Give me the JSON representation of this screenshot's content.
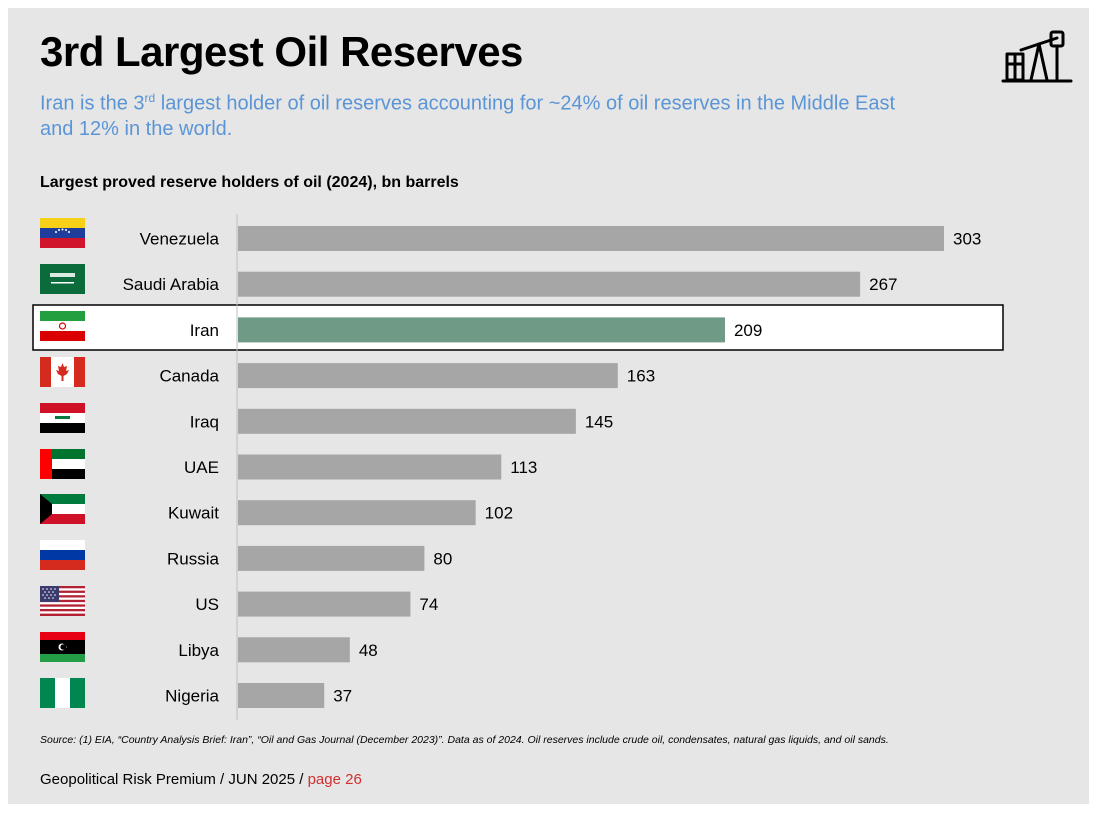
{
  "header": {
    "title": "3rd Largest Oil Reserves",
    "subtitle_part1": "Iran is the 3",
    "subtitle_sup": "rd",
    "subtitle_part2": " largest holder of oil reserves accounting for ~24% of oil reserves in the Middle East and 12% in the world.",
    "icon": "oil-pump-icon"
  },
  "chart_data": {
    "type": "bar",
    "orientation": "horizontal",
    "title": "Largest proved reserve holders of oil (2024), bn barrels",
    "categories": [
      "Venezuela",
      "Saudi Arabia",
      "Iran",
      "Canada",
      "Iraq",
      "UAE",
      "Kuwait",
      "Russia",
      "US",
      "Libya",
      "Nigeria"
    ],
    "values": [
      303,
      267,
      209,
      163,
      145,
      113,
      102,
      80,
      74,
      48,
      37
    ],
    "value_labels": [
      "303",
      "267",
      "209",
      "163",
      "145",
      "113",
      "102",
      "80",
      "74",
      "48",
      "37"
    ],
    "highlight": "Iran",
    "xlim": [
      0,
      303
    ],
    "grid": false,
    "colors": {
      "bar": "#a6a6a6",
      "highlight_bar": "#6f9a85",
      "highlight_box": "#ffffff"
    }
  },
  "source": "Source: (1) EIA, “Country Analysis Brief: Iran”, “Oil and Gas Journal (December 2023)”. Data as of 2024. Oil reserves include crude oil, condensates, natural gas liquids, and oil sands.",
  "footer": {
    "report": "Geopolitical Risk Premium / JUN 2025 / ",
    "page": "page 26"
  },
  "colors": {
    "background": "#e6e6e6",
    "subtitle": "#5b95d6",
    "page_link": "#d32f2f"
  }
}
